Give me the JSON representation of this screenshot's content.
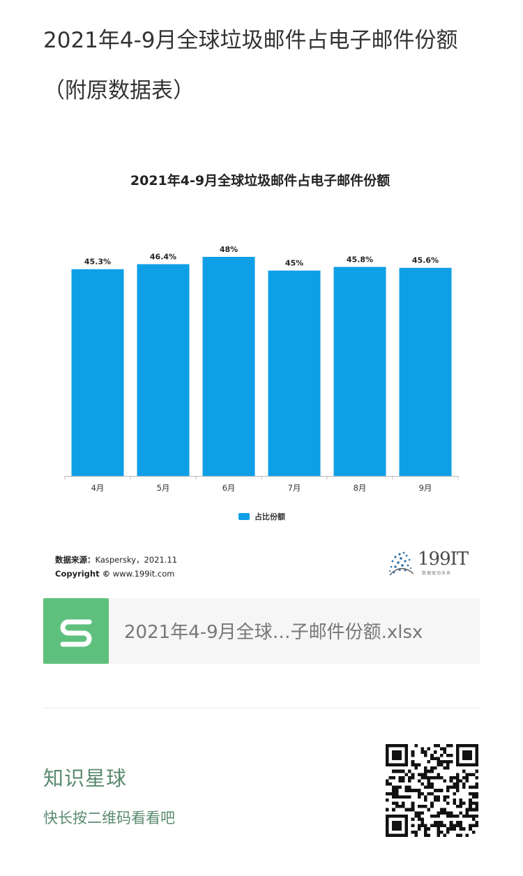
{
  "article": {
    "title": "2021年4-9月全球垃圾邮件占电子邮件份额（附原数据表）"
  },
  "chart_data": {
    "type": "bar",
    "title": "2021年4-9月全球垃圾邮件占电子邮件份额",
    "categories": [
      "4月",
      "5月",
      "6月",
      "7月",
      "8月",
      "9月"
    ],
    "series": [
      {
        "name": "占比份额",
        "values": [
          45.3,
          46.4,
          48,
          45,
          45.8,
          45.6
        ],
        "labels": [
          "45.3%",
          "46.4%",
          "48%",
          "45%",
          "45.8%",
          "45.6%"
        ],
        "color": "#0f9fe6"
      }
    ],
    "xlabel": "",
    "ylabel": "",
    "ylim": [
      0,
      50
    ],
    "grid": false,
    "legend": "bottom-center"
  },
  "source": {
    "label": "数据来源：",
    "text": "Kaspersky，2021.11",
    "copyright_label": "Copyright ©",
    "copyright_text": "www.199it.com"
  },
  "brand": {
    "name": "199IT",
    "tagline": "数据驱动未来",
    "color": "#4a4a4a"
  },
  "attachment": {
    "file_name": "2021年4-9月全球…子邮件份额.xlsx",
    "icon": "spreadsheet-s-icon",
    "icon_color": "#5fc07e"
  },
  "footer": {
    "title": "知识星球",
    "subtitle": "快长按二维码看看吧",
    "qr_icon": "qr-code-icon"
  }
}
